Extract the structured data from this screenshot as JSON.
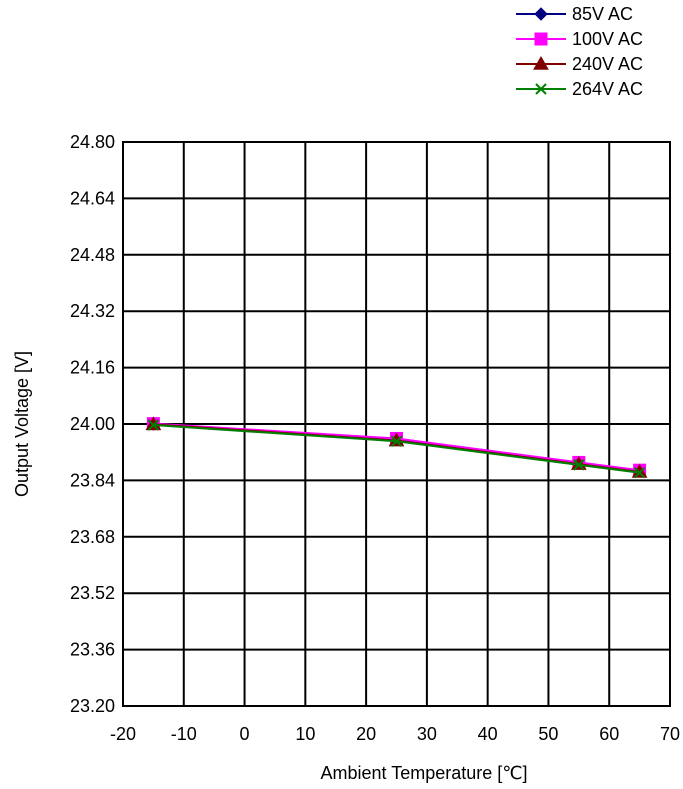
{
  "chart_data": {
    "type": "line",
    "title": "",
    "xlabel": "Ambient Temperature [℃]",
    "ylabel": "Output Voltage [V]",
    "xlim": [
      -20,
      70
    ],
    "ylim": [
      23.2,
      24.8
    ],
    "x_ticks": [
      -20,
      -10,
      0,
      10,
      20,
      30,
      40,
      50,
      60,
      70
    ],
    "y_ticks": [
      23.2,
      23.36,
      23.52,
      23.68,
      23.84,
      24.0,
      24.16,
      24.32,
      24.48,
      24.64,
      24.8
    ],
    "x_tick_labels": [
      "-20",
      "-10",
      "0",
      "10",
      "20",
      "30",
      "40",
      "50",
      "60",
      "70"
    ],
    "y_tick_labels": [
      "23.20",
      "23.36",
      "23.52",
      "23.68",
      "23.84",
      "24.00",
      "24.16",
      "24.32",
      "24.48",
      "24.64",
      "24.80"
    ],
    "grid": true,
    "legend_position": "top-right",
    "x": [
      -15,
      25,
      55,
      65
    ],
    "series": [
      {
        "name": "85V AC",
        "values": [
          24.0,
          23.958,
          23.89,
          23.868
        ],
        "color": "#000080",
        "marker": "diamond"
      },
      {
        "name": "100V AC",
        "values": [
          24.001,
          23.959,
          23.891,
          23.869
        ],
        "color": "#ff00ff",
        "marker": "square"
      },
      {
        "name": "240V AC",
        "values": [
          23.999,
          23.953,
          23.886,
          23.864
        ],
        "color": "#800000",
        "marker": "triangle"
      },
      {
        "name": "264V AC",
        "values": [
          23.997,
          23.951,
          23.884,
          23.862
        ],
        "color": "#008000",
        "marker": "x"
      }
    ]
  }
}
